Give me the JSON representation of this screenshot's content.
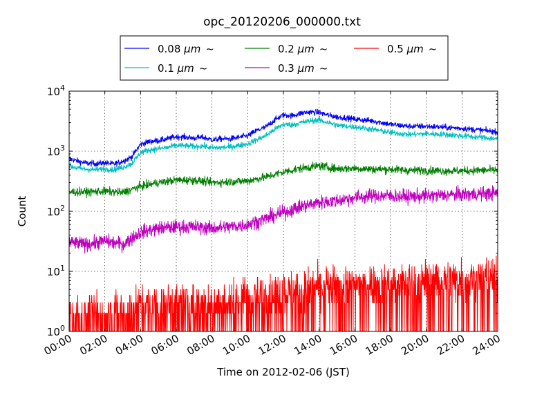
{
  "chart_data": {
    "type": "line",
    "title": "opc_20120206_000000.txt",
    "xlabel": "Time on 2012-02-06 (JST)",
    "ylabel": "Count",
    "x_unit": "hours",
    "xlim": [
      0,
      24
    ],
    "ylim": [
      1,
      10000
    ],
    "yscale": "log",
    "grid": true,
    "legend_placement": "top-center",
    "x_ticks": [
      {
        "x": 0,
        "label": "00:00"
      },
      {
        "x": 2,
        "label": "02:00"
      },
      {
        "x": 4,
        "label": "04:00"
      },
      {
        "x": 6,
        "label": "06:00"
      },
      {
        "x": 8,
        "label": "08:00"
      },
      {
        "x": 10,
        "label": "10:00"
      },
      {
        "x": 12,
        "label": "12:00"
      },
      {
        "x": 14,
        "label": "14:00"
      },
      {
        "x": 16,
        "label": "16:00"
      },
      {
        "x": 18,
        "label": "18:00"
      },
      {
        "x": 20,
        "label": "20:00"
      },
      {
        "x": 22,
        "label": "22:00"
      },
      {
        "x": 24,
        "label": "24:00"
      }
    ],
    "y_ticks": [
      {
        "y": 1,
        "base": "10",
        "exp": "0"
      },
      {
        "y": 10,
        "base": "10",
        "exp": "1"
      },
      {
        "y": 100,
        "base": "10",
        "exp": "2"
      },
      {
        "y": 1000,
        "base": "10",
        "exp": "3"
      },
      {
        "y": 10000,
        "base": "10",
        "exp": "4"
      }
    ],
    "series": [
      {
        "name": "0.08 μm ~",
        "name_size": "0.08 ",
        "name_unit": "μm",
        "name_tail": "~",
        "color": "#0000ff",
        "x": [
          0,
          0.5,
          1,
          1.5,
          2,
          2.5,
          3,
          3.5,
          4,
          4.5,
          5,
          5.5,
          6,
          6.5,
          7,
          7.5,
          8,
          8.5,
          9,
          9.5,
          10,
          10.5,
          11,
          11.5,
          12,
          12.5,
          13,
          13.5,
          14,
          14.5,
          15,
          15.5,
          16,
          17,
          18,
          19,
          20,
          21,
          22,
          23,
          24
        ],
        "y": [
          750,
          680,
          630,
          620,
          640,
          610,
          680,
          800,
          1300,
          1450,
          1500,
          1600,
          1750,
          1720,
          1650,
          1700,
          1550,
          1600,
          1600,
          1700,
          1800,
          2200,
          2500,
          3300,
          4000,
          3900,
          4300,
          4500,
          4400,
          4000,
          3700,
          3600,
          3400,
          3200,
          2800,
          2600,
          2600,
          2500,
          2400,
          2250,
          2100
        ],
        "noise": 0.05
      },
      {
        "name": "0.1 μm ~",
        "name_size": "0.1 ",
        "name_unit": "μm",
        "name_tail": "~",
        "color": "#00bfbf",
        "x": [
          0,
          0.5,
          1,
          1.5,
          2,
          2.5,
          3,
          3.5,
          4,
          4.5,
          5,
          5.5,
          6,
          6.5,
          7,
          7.5,
          8,
          8.5,
          9,
          9.5,
          10,
          10.5,
          11,
          11.5,
          12,
          12.5,
          13,
          13.5,
          14,
          14.5,
          15,
          15.5,
          16,
          17,
          18,
          19,
          20,
          21,
          22,
          23,
          24
        ],
        "y": [
          570,
          520,
          500,
          490,
          510,
          490,
          540,
          620,
          950,
          1050,
          1100,
          1150,
          1250,
          1230,
          1200,
          1220,
          1130,
          1150,
          1180,
          1250,
          1320,
          1550,
          1800,
          2300,
          2800,
          2750,
          3000,
          3200,
          3300,
          3000,
          2700,
          2600,
          2550,
          2300,
          2050,
          1900,
          1950,
          1900,
          1800,
          1700,
          1600
        ],
        "noise": 0.05
      },
      {
        "name": "0.2 μm ~",
        "name_size": "0.2 ",
        "name_unit": "μm",
        "name_tail": "~",
        "color": "#007f00",
        "x": [
          0,
          1,
          2,
          3,
          4,
          5,
          6,
          7,
          8,
          9,
          10,
          11,
          12,
          13,
          14,
          15,
          16,
          17,
          18,
          19,
          20,
          21,
          22,
          23,
          24
        ],
        "y": [
          210,
          210,
          215,
          205,
          260,
          300,
          330,
          330,
          300,
          310,
          320,
          370,
          450,
          520,
          570,
          510,
          520,
          500,
          500,
          480,
          480,
          470,
          470,
          480,
          480
        ],
        "noise": 0.07
      },
      {
        "name": "0.3 μm ~",
        "name_size": "0.3 ",
        "name_unit": "μm",
        "name_tail": "~",
        "color": "#bf00bf",
        "x": [
          0,
          1,
          2,
          3,
          4,
          5,
          6,
          7,
          8,
          9,
          10,
          11,
          12,
          13,
          14,
          15,
          16,
          17,
          18,
          19,
          20,
          21,
          22,
          23,
          24
        ],
        "y": [
          30,
          28,
          32,
          28,
          45,
          52,
          55,
          55,
          52,
          55,
          60,
          75,
          95,
          120,
          140,
          150,
          170,
          180,
          180,
          175,
          180,
          185,
          190,
          195,
          200
        ],
        "noise": 0.12
      },
      {
        "name": "0.5 μm ~",
        "name_size": "0.5 ",
        "name_unit": "μm",
        "name_tail": "~",
        "color": "#ff0000",
        "x": [
          0,
          2,
          4,
          6,
          8,
          10,
          12,
          14,
          16,
          18,
          20,
          22,
          24
        ],
        "y": [
          2,
          2,
          2.5,
          3,
          3,
          3.5,
          4.5,
          5.5,
          6,
          6.5,
          7,
          7.5,
          8
        ],
        "noise": 0.35
      }
    ]
  }
}
